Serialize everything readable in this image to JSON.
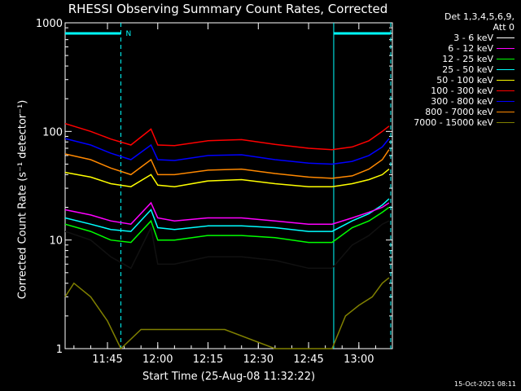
{
  "chart_data": {
    "type": "line",
    "title": "RHESSI Observing Summary Count Rates, Corrected",
    "xlabel": "Start Time (25-Aug-08 11:32:22)",
    "ylabel": "Corrected Count Rate (s⁻¹ detector⁻¹)",
    "yscale": "log",
    "ylim": [
      1,
      1000
    ],
    "xlim": [
      "11:32:22",
      "13:10:00"
    ],
    "x_ticks": [
      "11:45",
      "12:00",
      "12:15",
      "12:30",
      "12:45",
      "13:00"
    ],
    "y_ticks": [
      "1",
      "10",
      "100",
      "1000"
    ],
    "legend_header": [
      "Det 1,3,4,5,6,9,",
      "Att 0"
    ],
    "legend_position": "right",
    "flag_label": "N",
    "grid": false,
    "flag_bars": [
      [
        "11:32:22",
        "11:49:00"
      ],
      [
        "12:52:30",
        "13:09:30"
      ]
    ],
    "dashed_markers": [
      "11:49:00",
      "13:09:30"
    ],
    "solid_markers": [
      "12:52:30"
    ],
    "series": [
      {
        "name": "3 - 6 keV",
        "color": "#000000",
        "x": [
          "11:32:22",
          "11:40:00",
          "11:46:00",
          "11:52:00",
          "11:58:00",
          "12:00:00",
          "12:05:00",
          "12:15:00",
          "12:25:00",
          "12:35:00",
          "12:45:00",
          "12:52:00",
          "12:58:00",
          "13:03:00",
          "13:07:00",
          "13:09:00"
        ],
        "values": [
          12,
          10,
          7,
          5.5,
          13,
          6,
          6,
          7,
          7,
          6.5,
          5.5,
          5.5,
          9,
          11,
          14,
          15
        ]
      },
      {
        "name": "6 - 12 keV",
        "color": "#ff00ff",
        "x": [
          "11:32:22",
          "11:40:00",
          "11:46:00",
          "11:52:00",
          "11:58:00",
          "12:00:00",
          "12:05:00",
          "12:15:00",
          "12:25:00",
          "12:35:00",
          "12:45:00",
          "12:52:00",
          "12:58:00",
          "13:03:00",
          "13:07:00",
          "13:09:00"
        ],
        "values": [
          19,
          17,
          15,
          14,
          22,
          16,
          15,
          16,
          16,
          15,
          14,
          14,
          16,
          18,
          20,
          22
        ]
      },
      {
        "name": "12 - 25 keV",
        "color": "#00ff00",
        "x": [
          "11:32:22",
          "11:40:00",
          "11:46:00",
          "11:52:00",
          "11:58:00",
          "12:00:00",
          "12:05:00",
          "12:15:00",
          "12:25:00",
          "12:35:00",
          "12:45:00",
          "12:52:00",
          "12:58:00",
          "13:03:00",
          "13:07:00",
          "13:09:00"
        ],
        "values": [
          14,
          12,
          10,
          9.5,
          15,
          10,
          10,
          11,
          11,
          10.5,
          9.5,
          9.5,
          13,
          15,
          18,
          20
        ]
      },
      {
        "name": "25 - 50 keV",
        "color": "#00ffff",
        "x": [
          "11:32:22",
          "11:40:00",
          "11:46:00",
          "11:52:00",
          "11:58:00",
          "12:00:00",
          "12:05:00",
          "12:15:00",
          "12:25:00",
          "12:35:00",
          "12:45:00",
          "12:52:00",
          "12:58:00",
          "13:03:00",
          "13:07:00",
          "13:09:00"
        ],
        "values": [
          16,
          14,
          12.5,
          12,
          19,
          13,
          12.5,
          13.5,
          13.5,
          13,
          12,
          12,
          15,
          17.5,
          21,
          24
        ]
      },
      {
        "name": "50 - 100 keV",
        "color": "#ffff00",
        "x": [
          "11:32:22",
          "11:40:00",
          "11:46:00",
          "11:52:00",
          "11:58:00",
          "12:00:00",
          "12:05:00",
          "12:15:00",
          "12:25:00",
          "12:35:00",
          "12:45:00",
          "12:52:00",
          "12:58:00",
          "13:03:00",
          "13:07:00",
          "13:09:00"
        ],
        "values": [
          42,
          38,
          33,
          31,
          40,
          32,
          31,
          35,
          36,
          33,
          31,
          31,
          33,
          36,
          40,
          45
        ]
      },
      {
        "name": "100 - 300 keV",
        "color": "#ff0000",
        "x": [
          "11:32:22",
          "11:40:00",
          "11:46:00",
          "11:52:00",
          "11:58:00",
          "12:00:00",
          "12:05:00",
          "12:15:00",
          "12:25:00",
          "12:35:00",
          "12:45:00",
          "12:52:00",
          "12:58:00",
          "13:03:00",
          "13:07:00",
          "13:09:00"
        ],
        "values": [
          118,
          100,
          85,
          75,
          105,
          75,
          74,
          82,
          84,
          76,
          70,
          68,
          72,
          82,
          100,
          112
        ]
      },
      {
        "name": "300 - 800 keV",
        "color": "#0000ff",
        "x": [
          "11:32:22",
          "11:40:00",
          "11:46:00",
          "11:52:00",
          "11:58:00",
          "12:00:00",
          "12:05:00",
          "12:15:00",
          "12:25:00",
          "12:35:00",
          "12:45:00",
          "12:52:00",
          "12:58:00",
          "13:03:00",
          "13:07:00",
          "13:09:00"
        ],
        "values": [
          86,
          75,
          63,
          55,
          75,
          55,
          54,
          60,
          61,
          55,
          51,
          50,
          53,
          60,
          72,
          86
        ]
      },
      {
        "name": "800 - 7000 keV",
        "color": "#ff8800",
        "x": [
          "11:32:22",
          "11:40:00",
          "11:46:00",
          "11:52:00",
          "11:58:00",
          "12:00:00",
          "12:05:00",
          "12:15:00",
          "12:25:00",
          "12:35:00",
          "12:45:00",
          "12:52:00",
          "12:58:00",
          "13:03:00",
          "13:07:00",
          "13:09:00"
        ],
        "values": [
          62,
          55,
          46,
          40,
          55,
          40,
          40,
          44,
          45,
          41,
          38,
          37,
          39,
          45,
          55,
          68
        ]
      },
      {
        "name": "7000 - 15000 keV",
        "color": "#808000",
        "x": [
          "11:32:22",
          "11:35:00",
          "11:40:00",
          "11:45:00",
          "11:49:00",
          "11:55:00",
          "12:05:00",
          "12:20:00",
          "12:35:00",
          "12:45:00",
          "12:52:00",
          "12:56:00",
          "13:00:00",
          "13:04:00",
          "13:07:00",
          "13:09:00"
        ],
        "values": [
          3,
          4,
          3,
          1.8,
          1,
          1.5,
          1.5,
          1.5,
          1,
          1,
          1,
          2,
          2.5,
          3,
          4,
          4.5
        ]
      }
    ]
  },
  "timestamp": "15-Oct-2021 08:11"
}
